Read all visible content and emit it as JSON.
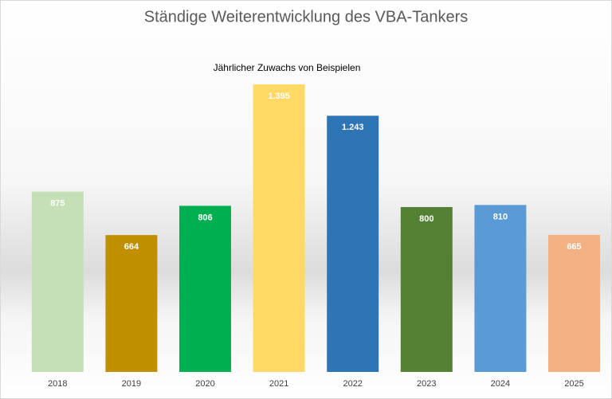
{
  "chart_data": {
    "type": "bar",
    "title": "Ständige Weiterentwicklung des VBA-Tankers",
    "subtitle": "Jährlicher Zuwachs von Beispielen",
    "categories": [
      "2018",
      "2019",
      "2020",
      "2021",
      "2022",
      "2023",
      "2024",
      "2025"
    ],
    "values": [
      875,
      664,
      806,
      1395,
      1243,
      800,
      810,
      665
    ],
    "value_labels": [
      "875",
      "664",
      "806",
      "1.395",
      "1.243",
      "800",
      "810",
      "665"
    ],
    "colors": [
      "#c5e0b4",
      "#bf8f00",
      "#00b050",
      "#ffd966",
      "#2e75b6",
      "#548235",
      "#5b9bd5",
      "#f4b183"
    ]
  }
}
